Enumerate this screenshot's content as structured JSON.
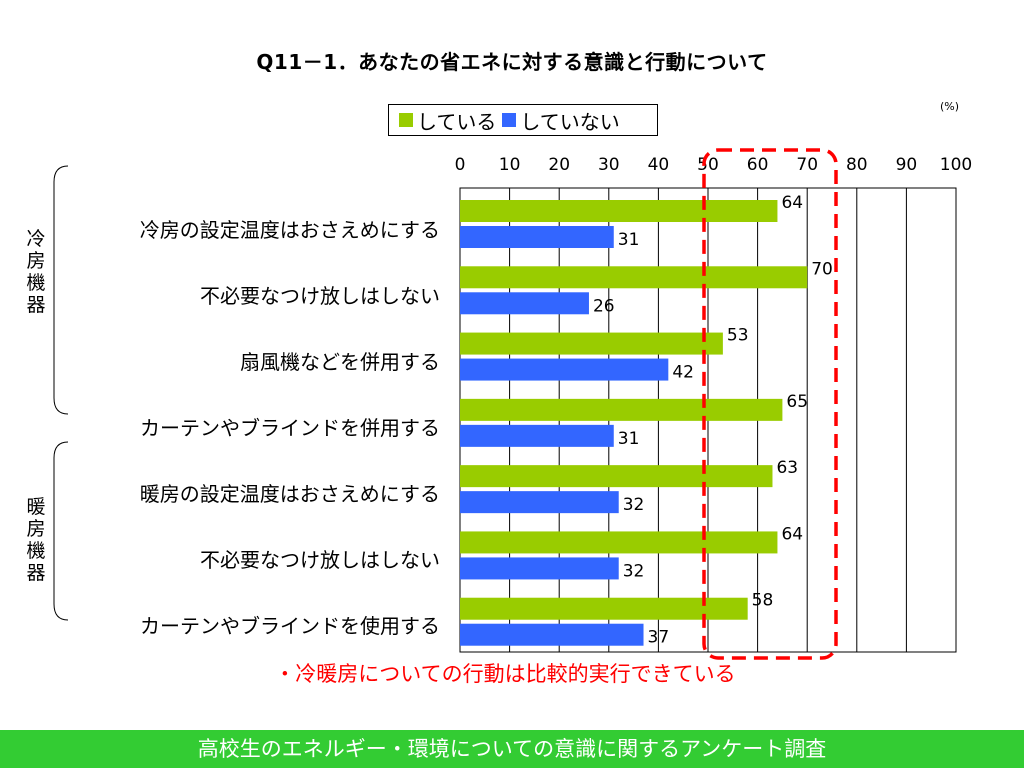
{
  "title": "Q11－1．あなたの省エネに対する意識と行動について",
  "unit": "(%)",
  "groups": [
    "冷房機器",
    "暖房機器"
  ],
  "callout": "・冷暖房についての行動は比較的実行できている",
  "footer": "高校生のエネルギー・環境についての意識に関するアンケート調査",
  "colors": {
    "series1": "#99cc00",
    "series2": "#3366ff",
    "highlight": "#ff0000",
    "footer": "#33cc33"
  },
  "chart_data": {
    "type": "bar",
    "orientation": "horizontal",
    "categories": [
      "冷房の設定温度はおさえめにする",
      "不必要なつけ放しはしない",
      "扇風機などを併用する",
      "カーテンやブラインドを併用する",
      "暖房の設定温度はおさえめにする",
      "不必要なつけ放しはしない",
      "カーテンやブラインドを使用する"
    ],
    "series": [
      {
        "name": "している",
        "values": [
          64,
          70,
          53,
          65,
          63,
          64,
          58
        ]
      },
      {
        "name": "していない",
        "values": [
          31,
          26,
          42,
          31,
          32,
          32,
          37
        ]
      }
    ],
    "xlim": [
      0,
      100
    ],
    "xticks": [
      0,
      10,
      20,
      30,
      40,
      50,
      60,
      70,
      80,
      90,
      100
    ],
    "highlight_range": [
      50,
      75
    ],
    "grid": true,
    "legend_position": "top"
  }
}
